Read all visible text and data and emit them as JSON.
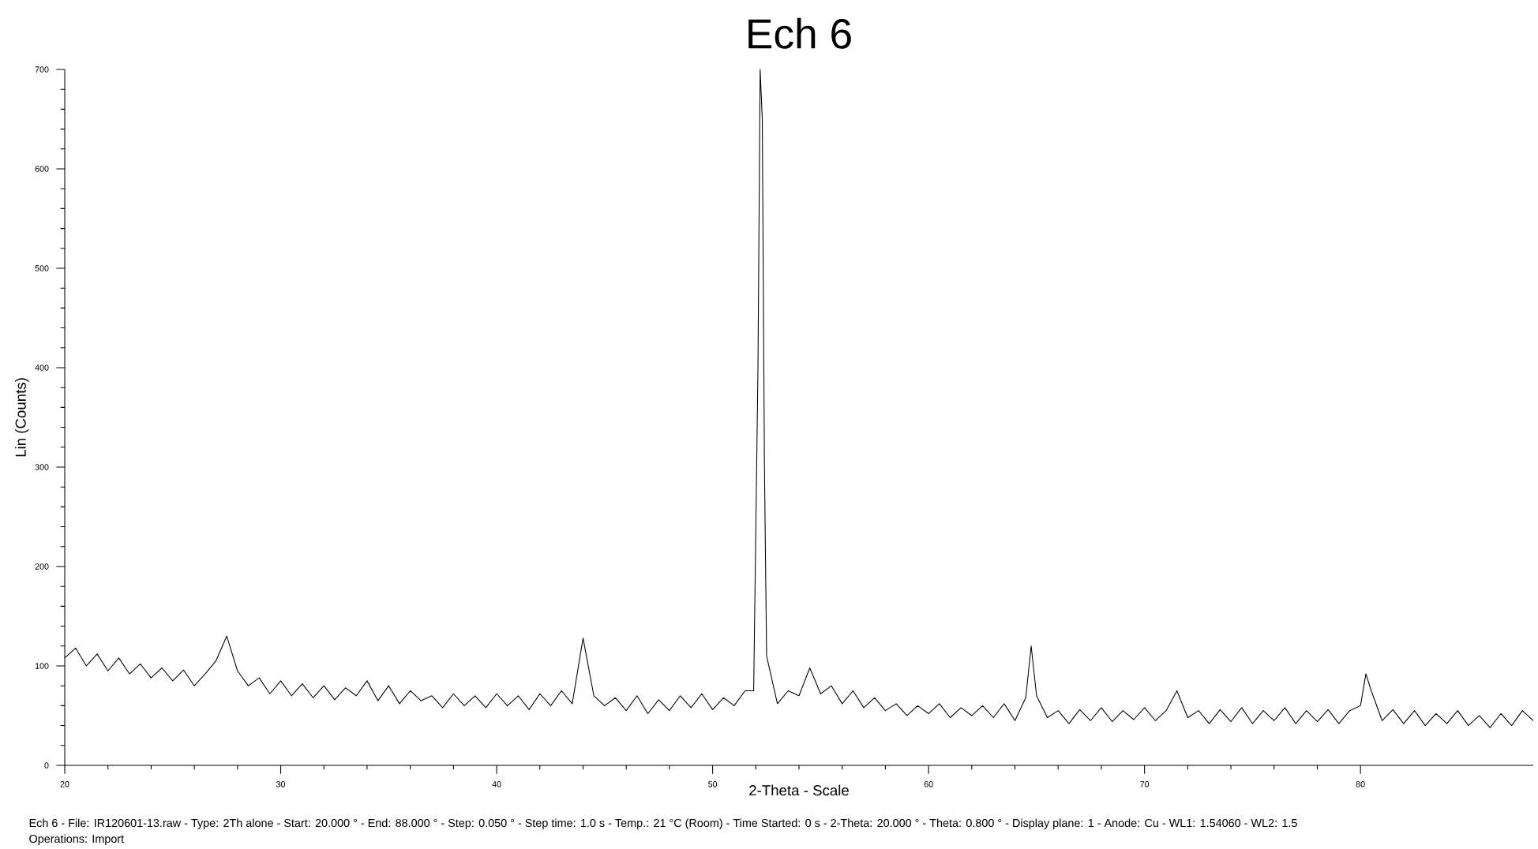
{
  "chart_data": {
    "type": "line",
    "title": "Ech 6",
    "xlabel": "2-Theta - Scale",
    "ylabel": "Lin (Counts)",
    "annotations": [
      "Ech 6 - File: IR120601-13.raw - Type: 2Th alone - Start: 20.000 ° - End: 88.000 ° - Step: 0.050 ° - Step time: 1.0 s - Temp.: 21 °C (Room) - Time Started: 0 s - 2-Theta: 20.000 ° - Theta: 0.800 ° - Display plane: 1 - Anode: Cu - WL1: 1.54060 - WL2: 1.5",
      "Operations: Import"
    ],
    "xlim": [
      20,
      88
    ],
    "ylim": [
      0,
      700
    ],
    "xticks": [
      20,
      30,
      40,
      50,
      60,
      70,
      80
    ],
    "yticks": [
      0,
      100,
      200,
      300,
      400,
      500,
      600,
      700
    ],
    "grid": false,
    "marker": "none",
    "line_style": "solid",
    "color": "#000000",
    "x": [
      20,
      20.5,
      21,
      21.5,
      22,
      22.5,
      23,
      23.5,
      24,
      24.5,
      25,
      25.5,
      26,
      26.5,
      27,
      27.5,
      28,
      28.5,
      29,
      29.5,
      30,
      30.5,
      31,
      31.5,
      32,
      32.5,
      33,
      33.5,
      34,
      34.5,
      35,
      35.5,
      36,
      36.5,
      37,
      37.5,
      38,
      38.5,
      39,
      39.5,
      40,
      40.5,
      41,
      41.5,
      42,
      42.5,
      43,
      43.5,
      44,
      44.5,
      45,
      45.5,
      46,
      46.5,
      47,
      47.5,
      48,
      48.5,
      49,
      49.5,
      50,
      50.5,
      51,
      51.5,
      51.9,
      52.1,
      52.2,
      52.3,
      52.4,
      52.5,
      53,
      53.5,
      54,
      54.5,
      55,
      55.5,
      56,
      56.5,
      57,
      57.5,
      58,
      58.5,
      59,
      59.5,
      60,
      60.5,
      61,
      61.5,
      62,
      62.5,
      63,
      63.5,
      64,
      64.5,
      64.75,
      65,
      65.5,
      66,
      66.5,
      67,
      67.5,
      68,
      68.5,
      69,
      69.5,
      70,
      70.5,
      71,
      71.5,
      72,
      72.5,
      73,
      73.5,
      74,
      74.5,
      75,
      75.5,
      76,
      76.5,
      77,
      77.5,
      78,
      78.5,
      79,
      79.5,
      80,
      80.25,
      80.5,
      81,
      81.5,
      82,
      82.5,
      83,
      83.5,
      84,
      84.5,
      85,
      85.5,
      86,
      86.5,
      87,
      87.5,
      88
    ],
    "values": [
      108,
      118,
      100,
      112,
      95,
      108,
      92,
      102,
      88,
      98,
      85,
      96,
      80,
      92,
      105,
      130,
      95,
      80,
      88,
      72,
      85,
      70,
      82,
      68,
      80,
      66,
      78,
      70,
      85,
      65,
      80,
      62,
      75,
      65,
      70,
      58,
      72,
      60,
      70,
      58,
      72,
      60,
      70,
      56,
      72,
      60,
      75,
      62,
      128,
      70,
      60,
      68,
      55,
      70,
      52,
      66,
      55,
      70,
      58,
      72,
      56,
      68,
      60,
      75,
      75,
      400,
      700,
      650,
      300,
      110,
      62,
      75,
      70,
      98,
      72,
      80,
      62,
      75,
      58,
      68,
      55,
      62,
      50,
      60,
      52,
      62,
      48,
      58,
      50,
      60,
      48,
      62,
      45,
      68,
      120,
      70,
      48,
      55,
      42,
      56,
      45,
      58,
      44,
      55,
      46,
      58,
      45,
      55,
      75,
      48,
      55,
      42,
      56,
      44,
      58,
      42,
      55,
      45,
      58,
      42,
      55,
      44,
      56,
      42,
      55,
      60,
      92,
      75,
      45,
      56,
      42,
      55,
      40,
      52,
      42,
      55,
      40,
      50,
      38,
      52,
      40,
      55,
      45
    ]
  }
}
